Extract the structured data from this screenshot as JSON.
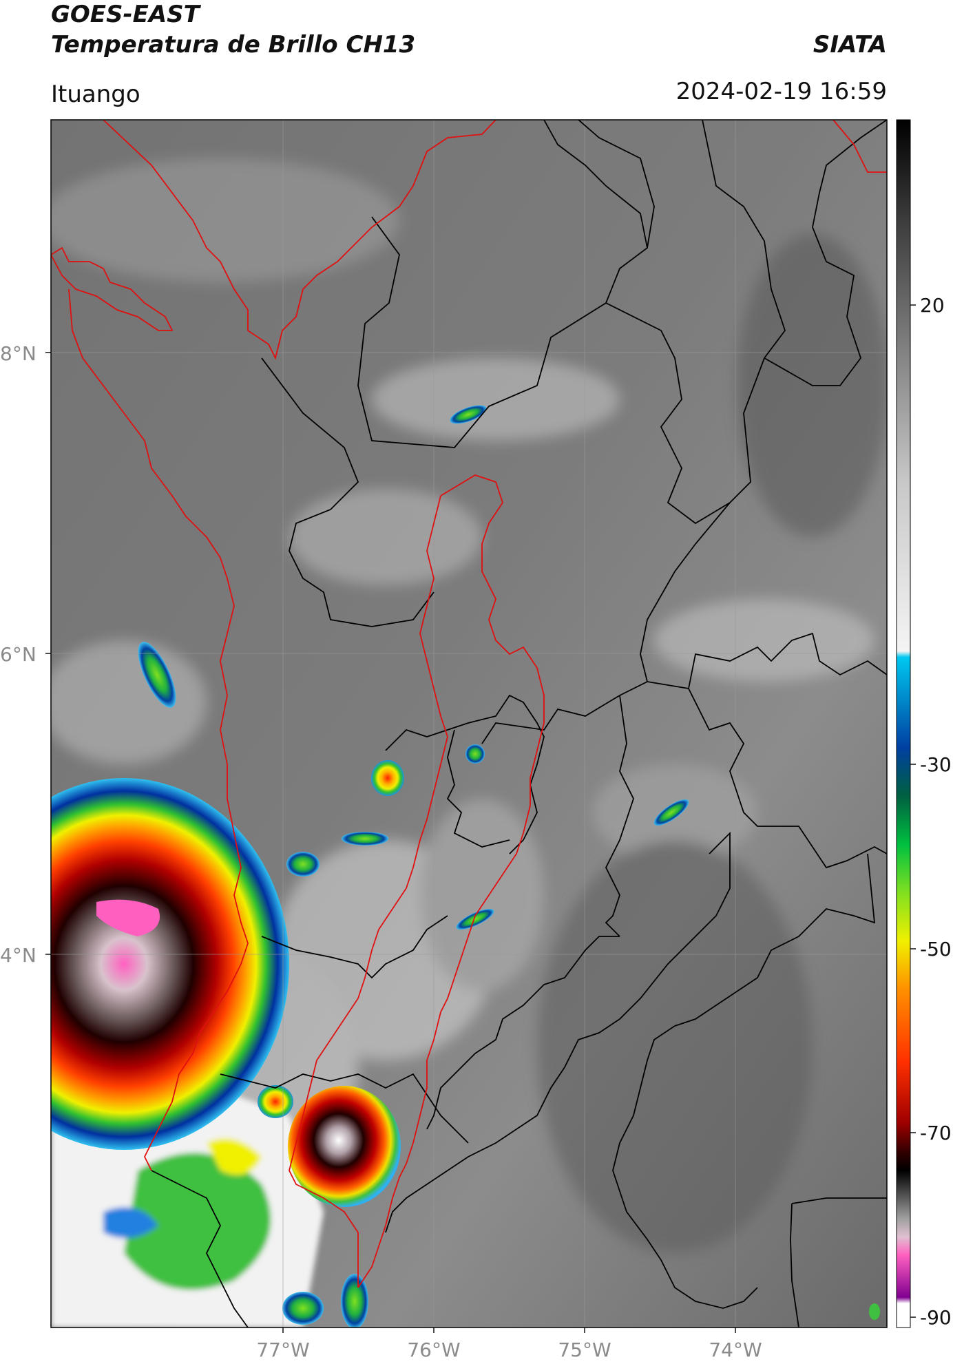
{
  "header": {
    "title": "GOES-EAST",
    "subtitle": "Temperatura de Brillo CH13",
    "organization": "SIATA",
    "location": "Ituango",
    "datetime": "2024-02-19 16:59"
  },
  "map": {
    "latitude_ticks": [
      "8°N",
      "6°N",
      "4°N"
    ],
    "longitude_ticks": [
      "77°W",
      "76°W",
      "75°W",
      "74°W"
    ],
    "colors": {
      "department_borders": "#000000",
      "region_outline": "#e01010",
      "background_gray": "#6e6e6e"
    }
  },
  "colorbar": {
    "ticks": [
      "20",
      "-30",
      "-50",
      "-70",
      "-90"
    ],
    "palette": [
      "#000000",
      "#3a3a3a",
      "#7a7a7a",
      "#c8c8c8",
      "#ffffff",
      "#00c8f0",
      "#0040a0",
      "#00a040",
      "#60e020",
      "#f0f000",
      "#ff8000",
      "#e00000",
      "#500000",
      "#000000",
      "#808080",
      "#e0b0c0",
      "#ff60c0",
      "#8000a0",
      "#ffffff"
    ]
  }
}
